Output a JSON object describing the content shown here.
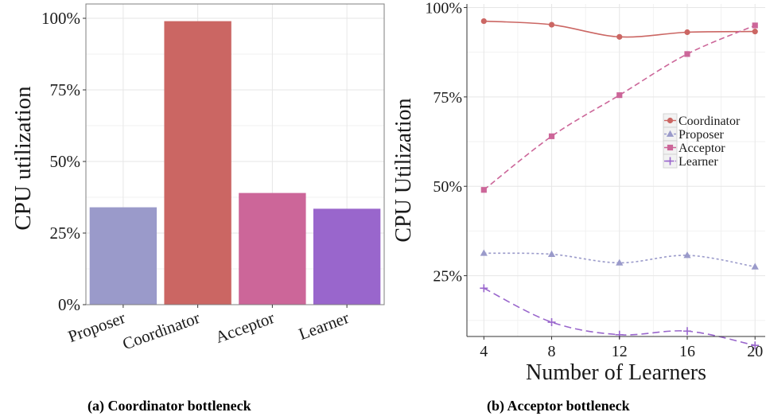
{
  "chart_data": [
    {
      "type": "bar",
      "ylabel": "CPU utilization",
      "xlabel": "",
      "categories": [
        "Proposer",
        "Coordinator",
        "Acceptor",
        "Learner"
      ],
      "values": [
        34,
        99,
        39,
        33.5
      ],
      "colors": [
        "#9a9aca",
        "#cb6663",
        "#cc6699",
        "#9966cc"
      ],
      "ylim": [
        0,
        105
      ],
      "yticks": [
        0,
        25,
        50,
        75,
        100
      ],
      "ytick_labels": [
        "0%",
        "25%",
        "50%",
        "75%",
        "100%"
      ],
      "grid": true,
      "caption": "(a) Coordinator bottleneck"
    },
    {
      "type": "line",
      "ylabel": "CPU Utilization",
      "xlabel": "Number of Learners",
      "x": [
        4,
        8,
        12,
        16,
        20
      ],
      "xticks": [
        4,
        8,
        12,
        16,
        20
      ],
      "xtick_labels": [
        "4",
        "8",
        "12",
        "16",
        "20"
      ],
      "xlim": [
        3,
        20.6
      ],
      "ylim": [
        8,
        101
      ],
      "yticks": [
        25,
        50,
        75,
        100
      ],
      "ytick_labels": [
        "25%",
        "50%",
        "75%",
        "100%"
      ],
      "grid": true,
      "legend_position": "right",
      "series": [
        {
          "name": "Coordinator",
          "values": [
            96.2,
            95.2,
            91.8,
            93.1,
            93.3
          ],
          "color": "#cb6663",
          "dash": "solid",
          "marker": "circle"
        },
        {
          "name": "Proposer",
          "values": [
            31.3,
            31.0,
            28.6,
            30.7,
            27.5
          ],
          "color": "#9a9aca",
          "dash": "dotted",
          "marker": "triangle"
        },
        {
          "name": "Acceptor",
          "values": [
            49.0,
            64.0,
            75.5,
            87.0,
            95.0
          ],
          "color": "#cc6699",
          "dash": "dashed",
          "marker": "square"
        },
        {
          "name": "Learner",
          "values": [
            21.5,
            12.0,
            8.5,
            9.5,
            5.5
          ],
          "color": "#9966cc",
          "dash": "longdash",
          "marker": "plus"
        }
      ],
      "caption": "(b) Acceptor bottleneck"
    }
  ]
}
